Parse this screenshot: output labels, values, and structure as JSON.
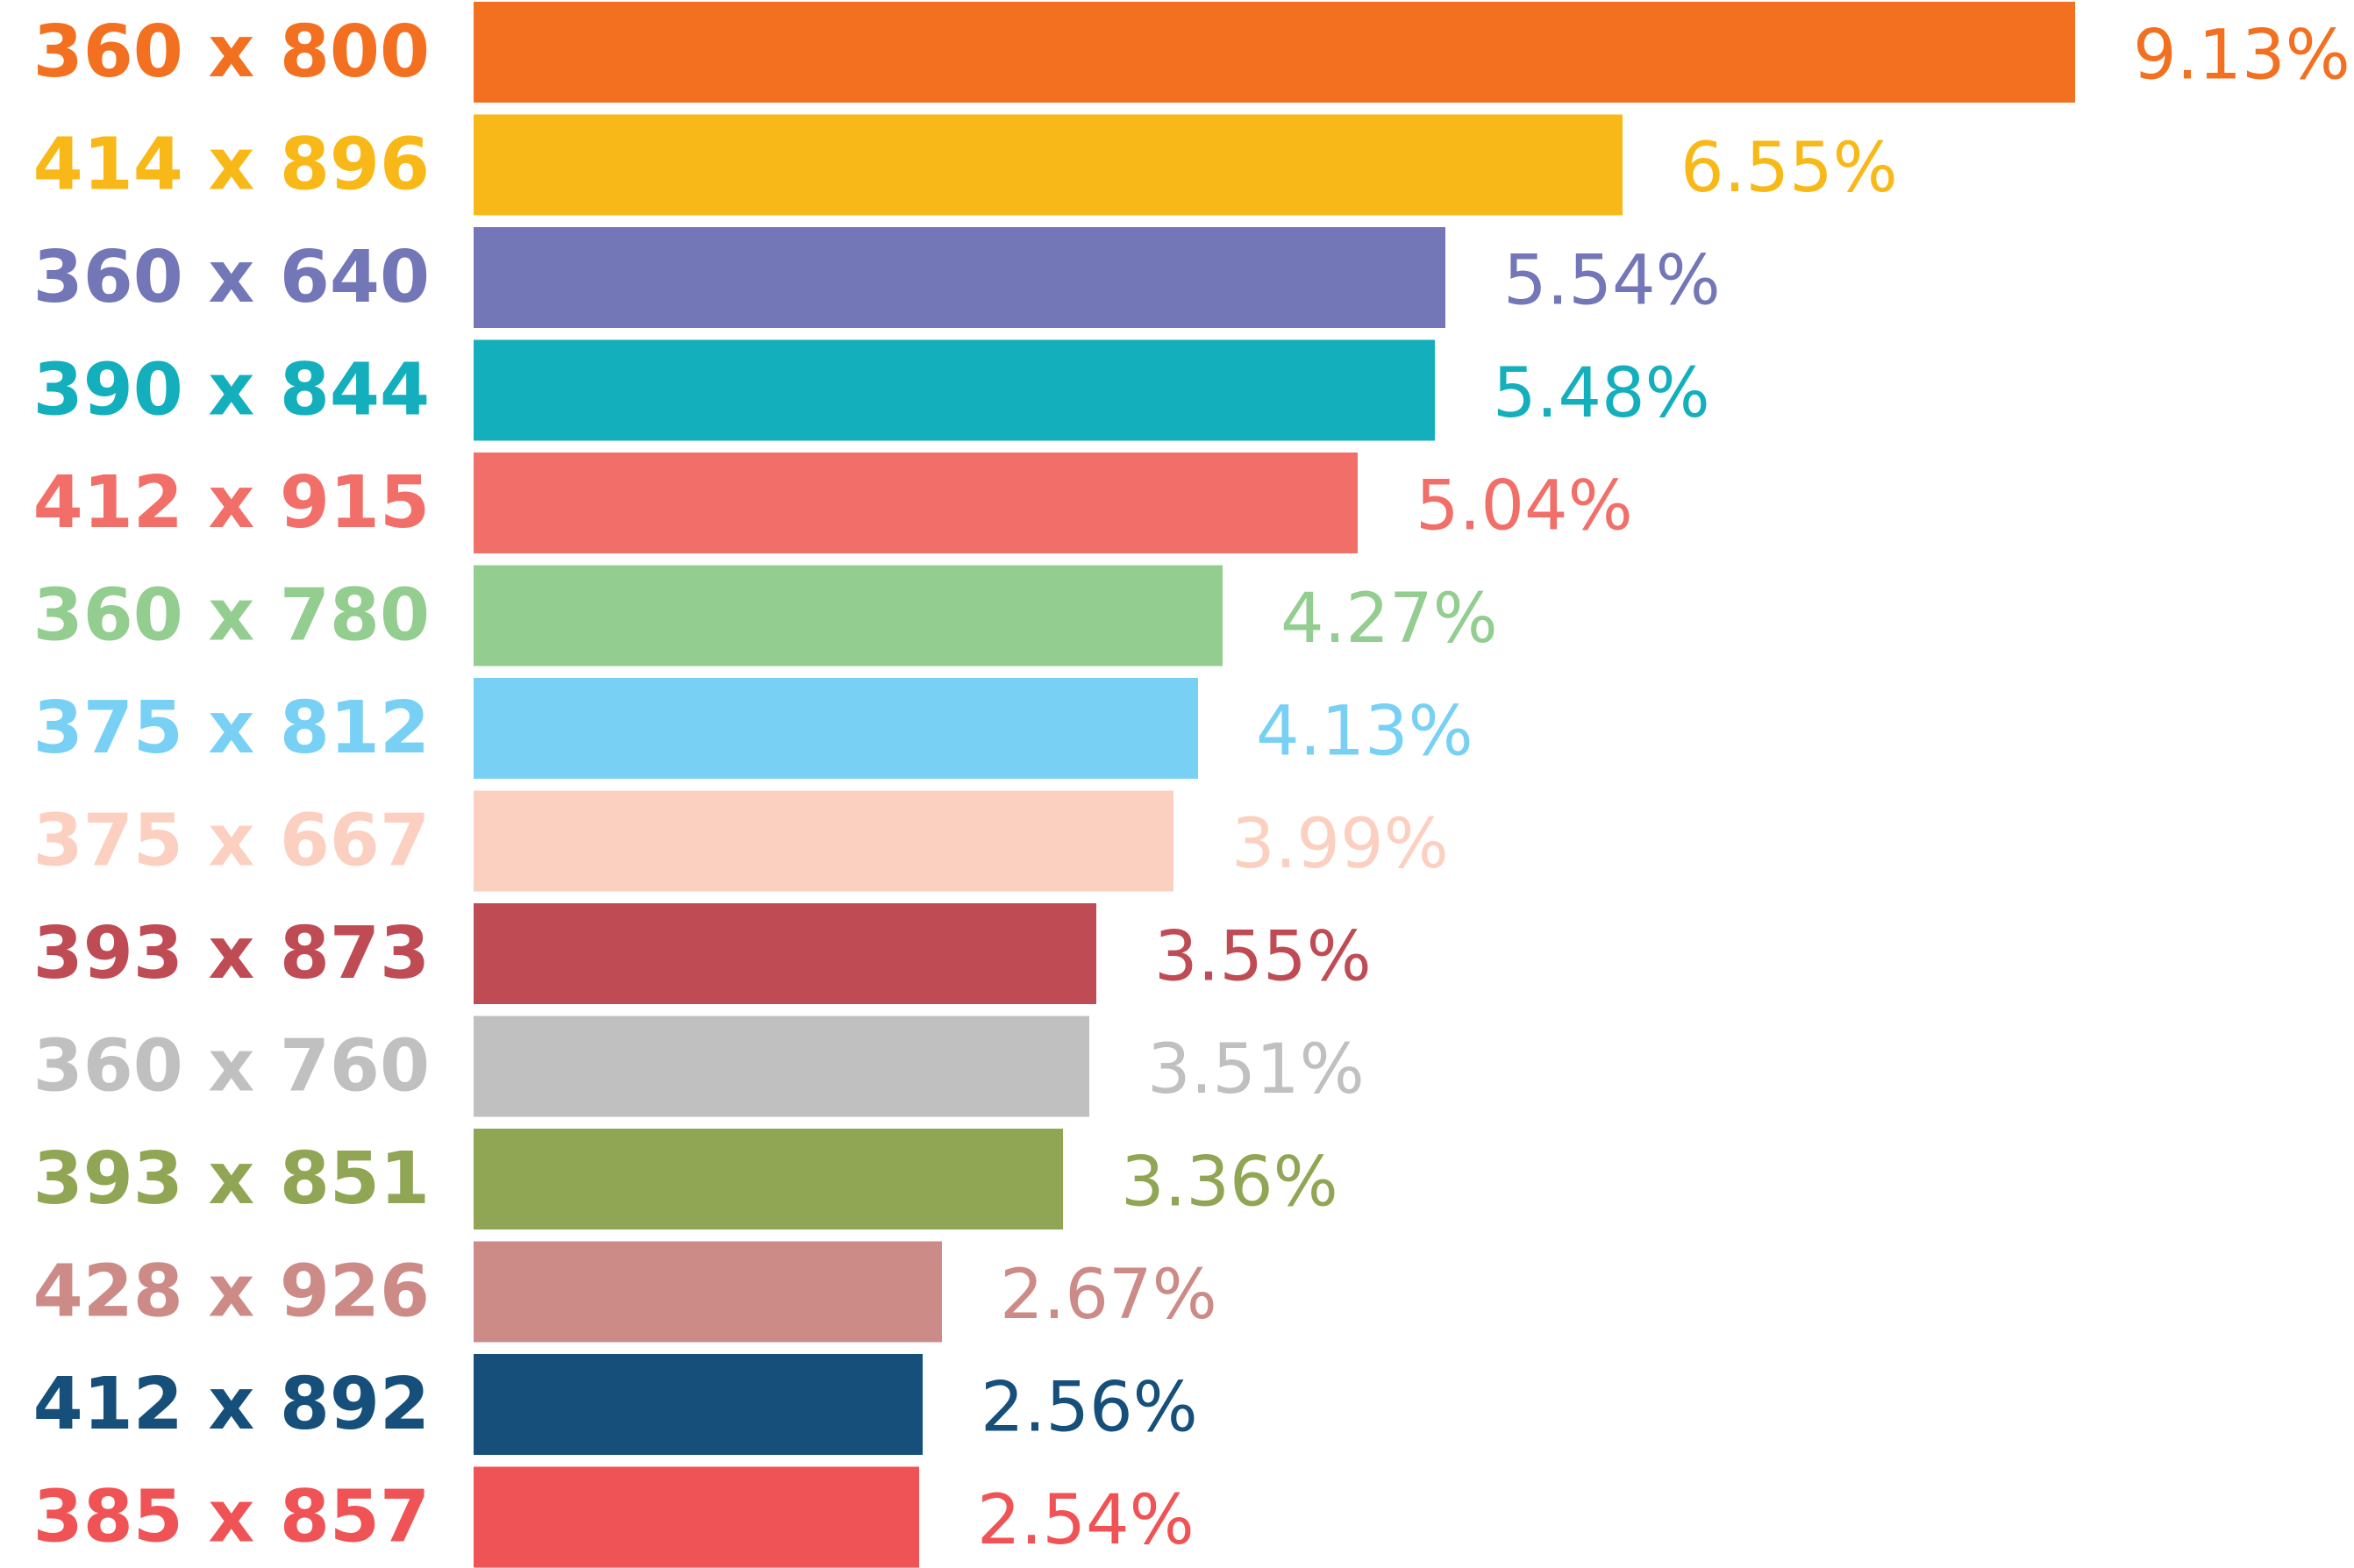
{
  "chart_data": {
    "type": "bar",
    "orientation": "horizontal",
    "categories": [
      "360 x 800",
      "414 x 896",
      "360 x 640",
      "390 x 844",
      "412 x 915",
      "360 x 780",
      "375 x 812",
      "375 x 667",
      "393 x 873",
      "360 x 760",
      "393 x 851",
      "428 x 926",
      "412 x 892",
      "385 x 857"
    ],
    "values": [
      9.13,
      6.55,
      5.54,
      5.48,
      5.04,
      4.27,
      4.13,
      3.99,
      3.55,
      3.51,
      3.36,
      2.67,
      2.56,
      2.54
    ],
    "value_labels": [
      "9.13%",
      "6.55%",
      "5.54%",
      "5.48%",
      "5.04%",
      "4.27%",
      "4.13%",
      "3.99%",
      "3.55%",
      "3.51%",
      "3.36%",
      "2.67%",
      "2.56%",
      "2.54%"
    ],
    "colors": [
      "#F37021",
      "#F8B918",
      "#7376B7",
      "#13AFBC",
      "#F16F68",
      "#94CD90",
      "#78D1F5",
      "#FCD0C0",
      "#BF4C54",
      "#C0C0C0",
      "#91A655",
      "#CC8B87",
      "#154F7A",
      "#F05355"
    ],
    "title": "",
    "xlabel": "",
    "ylabel": "",
    "xlim": [
      0,
      9.13
    ],
    "grid": false,
    "legend": "none"
  }
}
